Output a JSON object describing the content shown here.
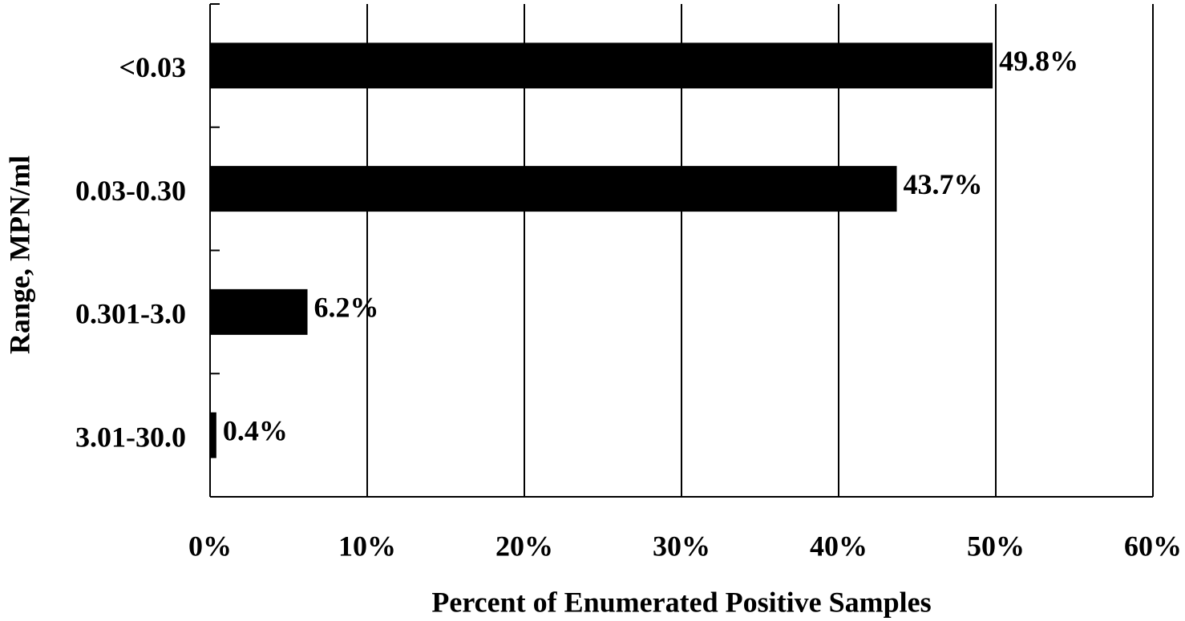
{
  "chart_data": {
    "type": "bar",
    "orientation": "horizontal",
    "xlabel": "Percent of Enumerated Positive Samples",
    "ylabel": "Range, MPN/ml",
    "categories": [
      "<0.03",
      "0.03-0.30",
      "0.301-3.0",
      "3.01-30.0"
    ],
    "values": [
      49.8,
      43.7,
      6.2,
      0.4
    ],
    "value_labels": [
      "49.8%",
      "43.7%",
      "6.2%",
      "0.4%"
    ],
    "color": "#000000",
    "xlim": [
      0,
      60
    ],
    "xticks": [
      {
        "value": 0,
        "label": "0%"
      },
      {
        "value": 10,
        "label": "10%"
      },
      {
        "value": 20,
        "label": "20%"
      },
      {
        "value": 30,
        "label": "30%"
      },
      {
        "value": 40,
        "label": "40%"
      },
      {
        "value": 50,
        "label": "50%"
      },
      {
        "value": 60,
        "label": "60%"
      }
    ],
    "grid": true
  }
}
